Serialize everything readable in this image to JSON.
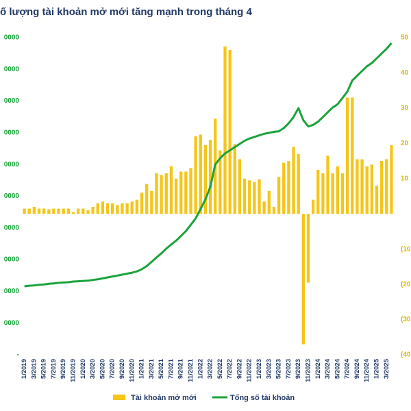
{
  "chart_data": {
    "type": "bar_line",
    "title": "ố lượng tài khoản mở mới tăng mạnh trong tháng 4",
    "categories": [
      "1/2019",
      null,
      "3/2019",
      null,
      "5/2019",
      null,
      "7/2019",
      null,
      "9/2019",
      null,
      "11/2019",
      null,
      "1/2020",
      null,
      "3/2020",
      null,
      "5/2020",
      null,
      "7/2020",
      null,
      "9/2020",
      null,
      "11/2020",
      null,
      "1/2021",
      null,
      "3/2021",
      null,
      "5/2021",
      null,
      "7/2021",
      null,
      "9/2021",
      null,
      "11/2021",
      null,
      "1/2022",
      null,
      "3/2022",
      null,
      "5/2022",
      null,
      "7/2022",
      null,
      "9/2022",
      null,
      "11/2022",
      null,
      "1/2023",
      null,
      "3/2023",
      null,
      "5/2023",
      null,
      "7/2023",
      null,
      "9/2023",
      null,
      "11/2023",
      null,
      "1/2024",
      null,
      "3/2024",
      null,
      "5/2024",
      null,
      "7/2024",
      null,
      "9/2024",
      null,
      "11/2024",
      null,
      "1/2025",
      null,
      "3/2025",
      null
    ],
    "series": [
      {
        "name": "Tài khoản mở mới",
        "kind": "bar",
        "axis": "y2",
        "color": "#f5c518",
        "values": [
          1.5,
          1.5,
          2,
          1.5,
          1.5,
          1.3,
          1.5,
          1.5,
          1.5,
          1.5,
          0.5,
          1.5,
          1.5,
          1,
          2,
          3,
          3.5,
          3,
          3,
          2.5,
          3,
          3,
          3.5,
          4,
          6,
          8.5,
          6.5,
          11.5,
          11,
          11.5,
          13.5,
          10,
          12,
          12,
          13,
          22,
          22.5,
          19.5,
          21,
          27,
          18,
          47.5,
          46.5,
          19.8,
          15.5,
          10,
          9.5,
          9,
          9.8,
          3.5,
          6.5,
          2,
          10.5,
          14.5,
          15,
          19,
          17,
          -37,
          -19.5,
          4,
          12.5,
          11.5,
          16.5,
          11.5,
          13.5,
          11.5,
          33,
          33,
          15.5,
          15.5,
          13.5,
          14,
          8,
          15,
          15.5,
          19.5
        ]
      },
      {
        "name": "Tổng số tài khoản",
        "kind": "line",
        "axis": "y",
        "color": "#1aa33a",
        "values": [
          2.16,
          2.18,
          2.19,
          2.21,
          2.22,
          2.24,
          2.25,
          2.27,
          2.28,
          2.29,
          2.31,
          2.32,
          2.33,
          2.34,
          2.36,
          2.38,
          2.41,
          2.44,
          2.47,
          2.5,
          2.53,
          2.56,
          2.59,
          2.63,
          2.7,
          2.8,
          2.93,
          3.07,
          3.2,
          3.35,
          3.48,
          3.6,
          3.75,
          3.9,
          4.1,
          4.3,
          4.6,
          4.9,
          5.3,
          6.0,
          6.2,
          6.35,
          6.45,
          6.55,
          6.65,
          6.75,
          6.82,
          6.87,
          6.92,
          6.97,
          7.0,
          7.03,
          7.05,
          7.15,
          7.3,
          7.5,
          7.78,
          7.4,
          7.2,
          7.25,
          7.35,
          7.5,
          7.65,
          7.8,
          7.9,
          8.1,
          8.3,
          8.65,
          8.8,
          8.95,
          9.1,
          9.2,
          9.35,
          9.5,
          9.65,
          9.83
        ]
      }
    ],
    "ylim": [
      0,
      10
    ],
    "yticks": [
      {
        "value": 0,
        "label": "-"
      },
      {
        "value": 1,
        "label": "0000"
      },
      {
        "value": 2,
        "label": "0000"
      },
      {
        "value": 3,
        "label": "0000"
      },
      {
        "value": 4,
        "label": "0000"
      },
      {
        "value": 5,
        "label": "0000"
      },
      {
        "value": 6,
        "label": "0000"
      },
      {
        "value": 7,
        "label": "0000"
      },
      {
        "value": 8,
        "label": "0000"
      },
      {
        "value": 9,
        "label": "0000"
      },
      {
        "value": 10,
        "label": "0000"
      }
    ],
    "y2lim": [
      -40,
      50
    ],
    "y2ticks": [
      50,
      40,
      30,
      20,
      10,
      {
        "value": -10,
        "label": "(10"
      },
      {
        "value": -20,
        "label": "(20"
      },
      {
        "value": -30,
        "label": "(30"
      },
      {
        "value": -40,
        "label": "(40"
      }
    ],
    "grid": false
  }
}
